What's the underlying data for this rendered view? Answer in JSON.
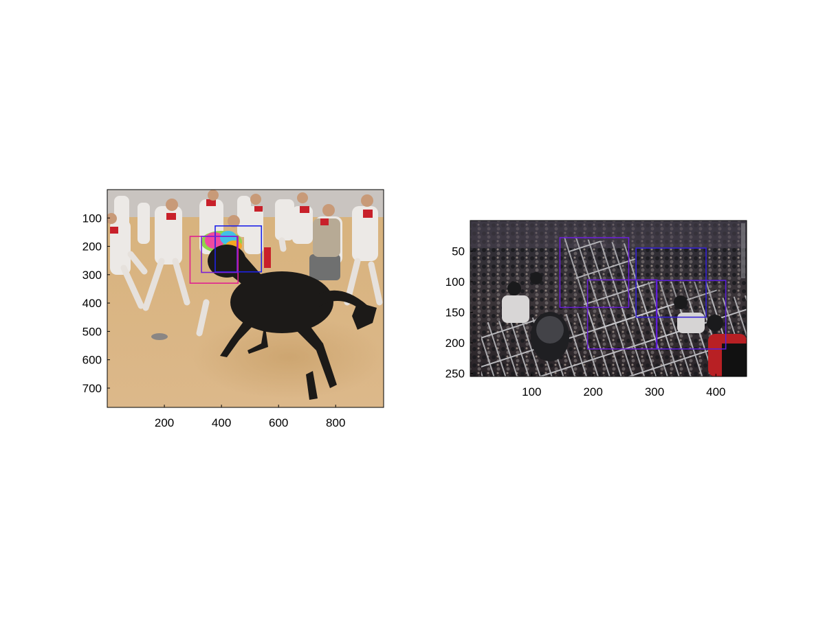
{
  "panels": [
    {
      "name": "left",
      "image_description": "",
      "ylim": [
        0,
        768
      ],
      "xlim": [
        0,
        968
      ],
      "yticks": [
        100,
        200,
        300,
        400,
        500,
        600,
        700
      ],
      "xticks": [
        200,
        400,
        600,
        800
      ],
      "boxes": [
        {
          "color": "#e0208f",
          "x0": 290,
          "y0": 165,
          "x1": 458,
          "y1": 330
        },
        {
          "color": "#1e22e8",
          "x0": 378,
          "y0": 128,
          "x1": 540,
          "y1": 290
        },
        {
          "color": "#7a1fd6",
          "x0": 330,
          "y0": 165,
          "x1": 455,
          "y1": 292
        }
      ]
    },
    {
      "name": "right",
      "image_description": "",
      "ylim": [
        0,
        255
      ],
      "xlim": [
        0,
        450
      ],
      "yticks": [
        50,
        100,
        150,
        200,
        250
      ],
      "xticks": [
        100,
        200,
        300,
        400
      ],
      "boxes": [
        {
          "color": "#6a1fd6",
          "x0": 146,
          "y0": 28,
          "x1": 258,
          "y1": 142
        },
        {
          "color": "#3622d6",
          "x0": 270,
          "y0": 45,
          "x1": 384,
          "y1": 158
        },
        {
          "color": "#6a1fd6",
          "x0": 191,
          "y0": 97,
          "x1": 304,
          "y1": 210
        },
        {
          "color": "#5a1fd6",
          "x0": 303,
          "y0": 98,
          "x1": 416,
          "y1": 210
        }
      ]
    }
  ]
}
